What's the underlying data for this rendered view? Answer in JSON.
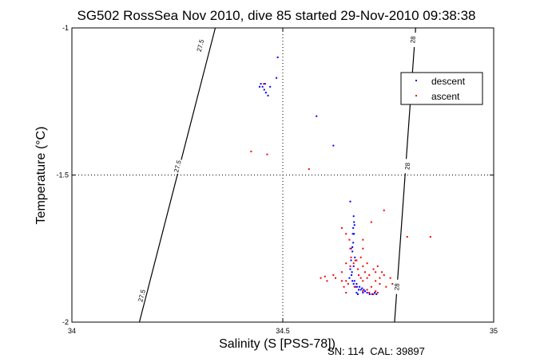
{
  "chart_data": {
    "type": "scatter",
    "title": "SG502 RossSea Nov 2010, dive 85 started 29-Nov-2010 09:38:38",
    "xlabel": "Salinity (S [PSS-78])",
    "ylabel": "Temperature (°C)",
    "xlim": [
      34,
      35
    ],
    "ylim": [
      -2,
      -1
    ],
    "x_ticks": [
      "34",
      "34.5",
      "35"
    ],
    "y_ticks": [
      "-1",
      "-1.5",
      "-2"
    ],
    "grid": "dotted at midlines",
    "legend_position": "top-right",
    "footer": "SN: 114  CAL: 39897",
    "colors": {
      "descent": "#0000ff",
      "ascent": "#ff0000",
      "axes": "#000000"
    },
    "contours": [
      {
        "label": "27.5",
        "points": [
          [
            34.34,
            -1
          ],
          [
            34.16,
            -2
          ]
        ],
        "label_positions": [
          [
            34.304,
            -1.06
          ],
          [
            34.25,
            -1.47
          ],
          [
            34.165,
            -1.91
          ]
        ]
      },
      {
        "label": "28",
        "points": [
          [
            34.815,
            -1
          ],
          [
            34.765,
            -2
          ]
        ],
        "label_positions": [
          [
            34.808,
            -1.04
          ],
          [
            34.795,
            -1.47
          ],
          [
            34.77,
            -1.88
          ]
        ]
      }
    ],
    "series": [
      {
        "name": "descent",
        "points": [
          [
            34.488,
            -1.1
          ],
          [
            34.448,
            -1.19
          ],
          [
            34.452,
            -1.2
          ],
          [
            34.456,
            -1.21
          ],
          [
            34.46,
            -1.22
          ],
          [
            34.465,
            -1.23
          ],
          [
            34.47,
            -1.2
          ],
          [
            34.485,
            -1.17
          ],
          [
            34.445,
            -1.2
          ],
          [
            34.458,
            -1.19
          ],
          [
            34.58,
            -1.3
          ],
          [
            34.62,
            -1.4
          ],
          [
            34.66,
            -1.59
          ],
          [
            34.668,
            -1.64
          ],
          [
            34.67,
            -1.67
          ],
          [
            34.669,
            -1.7
          ],
          [
            34.667,
            -1.73
          ],
          [
            34.665,
            -1.76
          ],
          [
            34.662,
            -1.79
          ],
          [
            34.66,
            -1.82
          ],
          [
            34.663,
            -1.84
          ],
          [
            34.665,
            -1.86
          ],
          [
            34.668,
            -1.87
          ],
          [
            34.672,
            -1.88
          ],
          [
            34.676,
            -1.88
          ],
          [
            34.68,
            -1.89
          ],
          [
            34.685,
            -1.89
          ],
          [
            34.69,
            -1.9
          ],
          [
            34.695,
            -1.895
          ],
          [
            34.7,
            -1.9
          ],
          [
            34.706,
            -1.905
          ],
          [
            34.712,
            -1.905
          ],
          [
            34.718,
            -1.9
          ],
          [
            34.722,
            -1.905
          ],
          [
            34.675,
            -1.9
          ],
          [
            34.678,
            -1.905
          ],
          [
            34.665,
            -1.745
          ],
          [
            34.662,
            -1.75
          ],
          [
            34.668,
            -1.81
          ],
          [
            34.664,
            -1.83
          ],
          [
            34.658,
            -1.85
          ],
          [
            34.67,
            -1.86
          ],
          [
            34.675,
            -1.87
          ],
          [
            34.682,
            -1.88
          ],
          [
            34.688,
            -1.885
          ],
          [
            34.692,
            -1.89
          ],
          [
            34.666,
            -1.7
          ],
          [
            34.667,
            -1.68
          ],
          [
            34.669,
            -1.66
          ],
          [
            34.671,
            -1.78
          ]
        ]
      },
      {
        "name": "ascent",
        "points": [
          [
            34.425,
            -1.42
          ],
          [
            34.463,
            -1.43
          ],
          [
            34.455,
            -1.19
          ],
          [
            34.562,
            -1.48
          ],
          [
            34.74,
            -1.62
          ],
          [
            34.71,
            -1.66
          ],
          [
            34.69,
            -1.72
          ],
          [
            34.69,
            -1.75
          ],
          [
            34.795,
            -1.71
          ],
          [
            34.85,
            -1.71
          ],
          [
            34.64,
            -1.68
          ],
          [
            34.65,
            -1.7
          ],
          [
            34.658,
            -1.72
          ],
          [
            34.66,
            -1.75
          ],
          [
            34.662,
            -1.78
          ],
          [
            34.668,
            -1.8
          ],
          [
            34.675,
            -1.79
          ],
          [
            34.69,
            -1.81
          ],
          [
            34.7,
            -1.8
          ],
          [
            34.715,
            -1.82
          ],
          [
            34.725,
            -1.81
          ],
          [
            34.735,
            -1.83
          ],
          [
            34.64,
            -1.83
          ],
          [
            34.62,
            -1.84
          ],
          [
            34.6,
            -1.845
          ],
          [
            34.59,
            -1.85
          ],
          [
            34.605,
            -1.86
          ],
          [
            34.625,
            -1.85
          ],
          [
            34.65,
            -1.86
          ],
          [
            34.68,
            -1.84
          ],
          [
            34.7,
            -1.85
          ],
          [
            34.72,
            -1.86
          ],
          [
            34.74,
            -1.84
          ],
          [
            34.755,
            -1.85
          ],
          [
            34.76,
            -1.87
          ],
          [
            34.745,
            -1.88
          ],
          [
            34.73,
            -1.87
          ],
          [
            34.71,
            -1.88
          ],
          [
            34.7,
            -1.89
          ],
          [
            34.72,
            -1.895
          ],
          [
            34.725,
            -1.9
          ],
          [
            34.715,
            -1.905
          ],
          [
            34.705,
            -1.9
          ],
          [
            34.69,
            -1.895
          ],
          [
            34.67,
            -1.88
          ],
          [
            34.655,
            -1.87
          ],
          [
            34.645,
            -1.88
          ],
          [
            34.65,
            -1.9
          ],
          [
            34.64,
            -1.86
          ],
          [
            34.685,
            -1.78
          ],
          [
            34.672,
            -1.79
          ],
          [
            34.695,
            -1.83
          ],
          [
            34.705,
            -1.84
          ],
          [
            34.72,
            -1.83
          ],
          [
            34.685,
            -1.85
          ],
          [
            34.66,
            -1.81
          ],
          [
            34.65,
            -1.8
          ],
          [
            34.678,
            -1.82
          ],
          [
            34.69,
            -1.86
          ],
          [
            34.73,
            -1.85
          ]
        ]
      }
    ]
  }
}
